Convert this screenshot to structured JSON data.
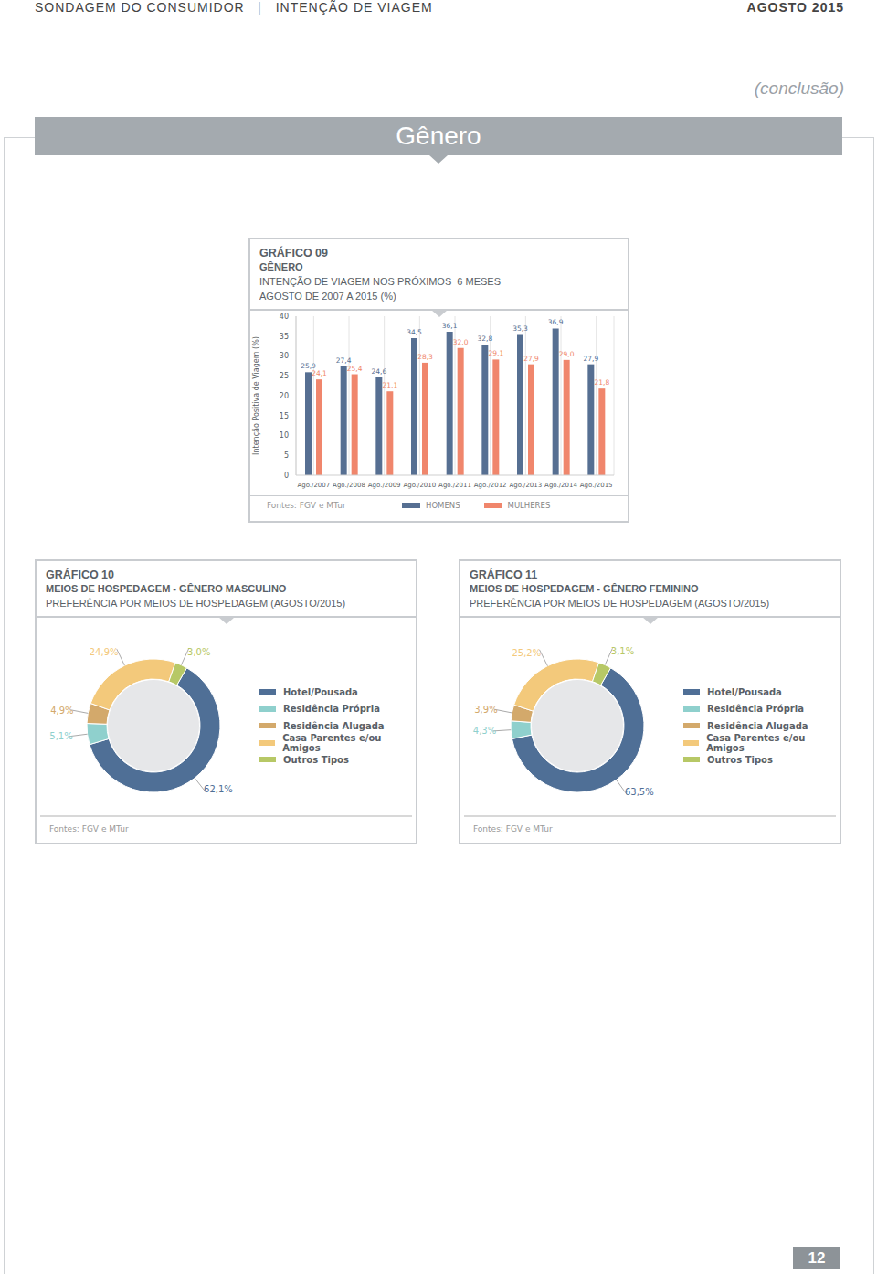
{
  "header": {
    "left": "SONDAGEM DO CONSUMIDOR",
    "separator": "|",
    "section": "INTENÇÃO DE VIAGEM",
    "date": "AGOSTO 2015",
    "note": "(conclusão)",
    "banner": "Gênero",
    "page": "12"
  },
  "chart_data": [
    {
      "type": "bar",
      "title": "GRÁFICO 09",
      "subtitle": [
        "GÊNERO",
        "INTENÇÃO DE VIAGEM NOS PRÓXIMOS  6 MESES",
        "AGOSTO DE 2007 A 2015 (%)"
      ],
      "y_label": "Intenção Positiva de Viagem (%)",
      "source": "Fontes: FGV e MTur",
      "categories": [
        "Ago./2007",
        "Ago./2008",
        "Ago./2009",
        "Ago./2010",
        "Ago./2011",
        "Ago./2012",
        "Ago./2013",
        "Ago./2014",
        "Ago./2015"
      ],
      "series": [
        {
          "name": "HOMENS",
          "color": "#566f92",
          "values": [
            25.9,
            27.4,
            24.6,
            34.5,
            36.1,
            32.8,
            35.3,
            36.9,
            27.9
          ],
          "value_labels": [
            "25,9",
            "27,4",
            "24,6",
            "34,5",
            "36,1",
            "32,8",
            "35,3",
            "36,9",
            "27,9"
          ]
        },
        {
          "name": "MULHERES",
          "color": "#f0866c",
          "values": [
            24.1,
            25.4,
            21.1,
            28.3,
            32.0,
            29.1,
            27.9,
            29.0,
            21.8
          ],
          "value_labels": [
            "24,1",
            "25,4",
            "21,1",
            "28,3",
            "32,0",
            "29,1",
            "27,9",
            "29,0",
            "21,8"
          ]
        }
      ],
      "ylim": [
        0,
        40
      ],
      "yticks": [
        0,
        5,
        10,
        15,
        20,
        25,
        30,
        35,
        40
      ],
      "grid": true,
      "legend": "bottom",
      "data_labels": true
    },
    {
      "type": "pie",
      "title": "GRÁFICO 10",
      "subtitle": [
        "MEIOS DE HOSPEDAGEM - GÊNERO MASCULINO",
        "PREFERÊNCIA POR MEIOS DE HOSPEDAGEM (AGOSTO/2015)"
      ],
      "source": "Fontes: FGV e MTur",
      "categories": [
        "Hotel/Pousada",
        "Residência Própria",
        "Residência Alugada",
        "Casa Parentes e/ou Amigos",
        "Outros Tipos"
      ],
      "values": [
        62.1,
        5.1,
        4.9,
        24.9,
        3.0
      ],
      "value_labels": [
        "62,1%",
        "5,1%",
        "4,9%",
        "24,9%",
        "3,0%"
      ],
      "colors": [
        "#4f6f96",
        "#8fd0cd",
        "#d3a96b",
        "#f3c97b",
        "#b7c866"
      ],
      "legend": "right",
      "data_labels": true
    },
    {
      "type": "pie",
      "title": "GRÁFICO 11",
      "subtitle": [
        "MEIOS DE HOSPEDAGEM - GÊNERO FEMININO",
        "PREFERÊNCIA POR MEIOS DE HOSPEDAGEM (AGOSTO/2015)"
      ],
      "source": "Fontes: FGV e MTur",
      "categories": [
        "Hotel/Pousada",
        "Residência Própria",
        "Residência Alugada",
        "Casa Parentes e/ou Amigos",
        "Outros Tipos"
      ],
      "values": [
        63.5,
        4.3,
        3.9,
        25.2,
        3.1
      ],
      "value_labels": [
        "63,5%",
        "4,3%",
        "3,9%",
        "25,2%",
        "3,1%"
      ],
      "colors": [
        "#4f6f96",
        "#8fd0cd",
        "#d3a96b",
        "#f3c97b",
        "#b7c866"
      ],
      "legend": "right",
      "data_labels": true
    }
  ]
}
